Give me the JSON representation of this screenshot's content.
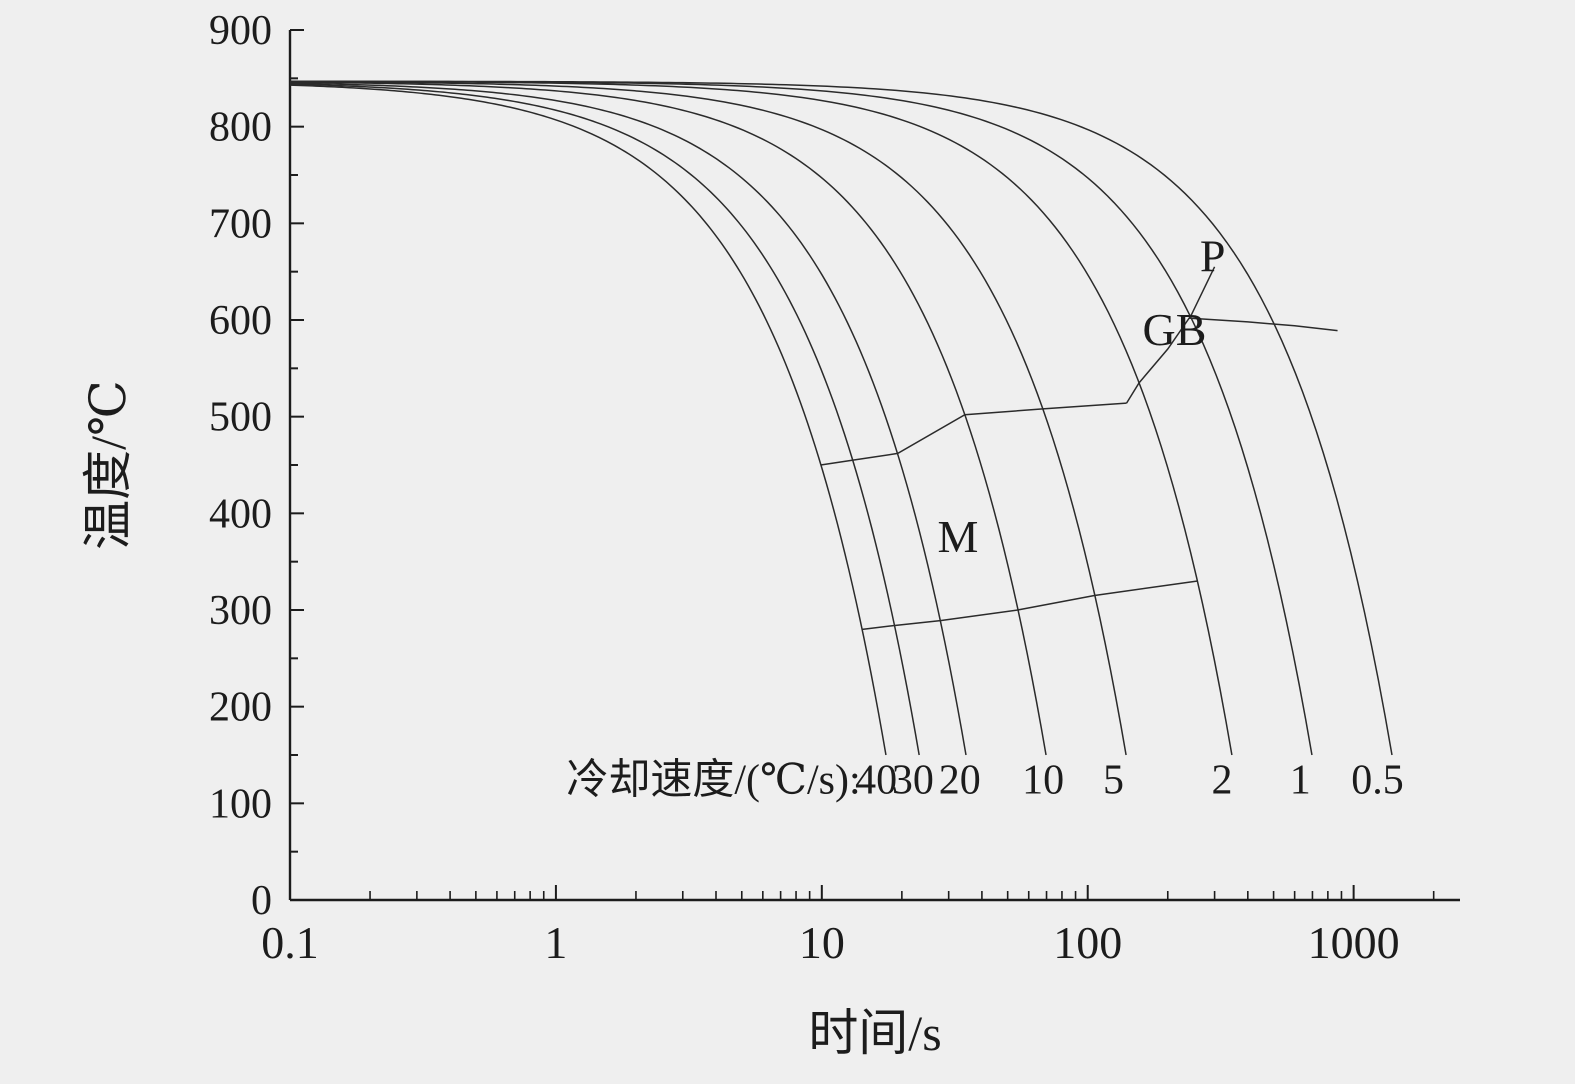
{
  "chart_data": {
    "type": "line",
    "title": "",
    "xlabel": "时间/s",
    "ylabel": "温度/℃",
    "x_scale": "log",
    "xlim": [
      0.1,
      2512
    ],
    "ylim": [
      0,
      900
    ],
    "x_ticks": [
      0.1,
      1,
      10,
      100,
      1000
    ],
    "x_tick_labels": [
      "0.1",
      "1",
      "10",
      "100",
      "1000"
    ],
    "y_ticks": [
      0,
      100,
      200,
      300,
      400,
      500,
      600,
      700,
      800,
      900
    ],
    "y_tick_labels": [
      "0",
      "100",
      "200",
      "300",
      "400",
      "500",
      "600",
      "700",
      "800",
      "900"
    ],
    "grid": false,
    "legend": "none",
    "start_temperature": 847,
    "curve_end_temperature": 150,
    "cooling_rates": [
      40,
      30,
      20,
      10,
      5,
      2,
      1,
      0.5
    ],
    "rate_caption_prefix": "冷却速度/(℃/s):",
    "rate_caption_prefix_t": 14,
    "rate_labels": [
      {
        "label": "40",
        "t": 16
      },
      {
        "label": "30",
        "t": 22
      },
      {
        "label": "20",
        "t": 33
      },
      {
        "label": "10",
        "t": 68
      },
      {
        "label": "5",
        "t": 125
      },
      {
        "label": "2",
        "t": 320
      },
      {
        "label": "1",
        "t": 630
      },
      {
        "label": "0.5",
        "t": 1230
      }
    ],
    "rate_labels_temperature": 110,
    "boundaries": [
      {
        "name": "martensite-start-line",
        "points": [
          [
            9.9,
            450
          ],
          [
            13.1,
            455
          ],
          [
            19.3,
            462
          ],
          [
            34.5,
            502
          ],
          [
            67.8,
            508
          ],
          [
            140,
            514
          ]
        ]
      },
      {
        "name": "bainite-region-rise-line",
        "points": [
          [
            140,
            514
          ],
          [
            156,
            535
          ],
          [
            200,
            570
          ],
          [
            245,
            605
          ],
          [
            300,
            655
          ]
        ]
      },
      {
        "name": "pearlite-start-line",
        "points": [
          [
            240,
            602
          ],
          [
            400,
            598
          ],
          [
            600,
            594
          ],
          [
            870,
            589
          ]
        ]
      },
      {
        "name": "martensite-finish-line",
        "points": [
          [
            14.2,
            280
          ],
          [
            18.8,
            284
          ],
          [
            27.9,
            289
          ],
          [
            54.5,
            300
          ],
          [
            106,
            315
          ],
          [
            259,
            330
          ]
        ]
      }
    ],
    "region_labels": [
      {
        "text": "M",
        "t": 32.5,
        "T": 360
      },
      {
        "text": "GB",
        "t": 212,
        "T": 574
      },
      {
        "text": "P",
        "t": 295,
        "T": 650
      }
    ],
    "colors": {
      "curve": "#2b2b2b",
      "axis": "#1c1c1c",
      "text": "#1c1c1c",
      "background": "#efefef"
    }
  }
}
